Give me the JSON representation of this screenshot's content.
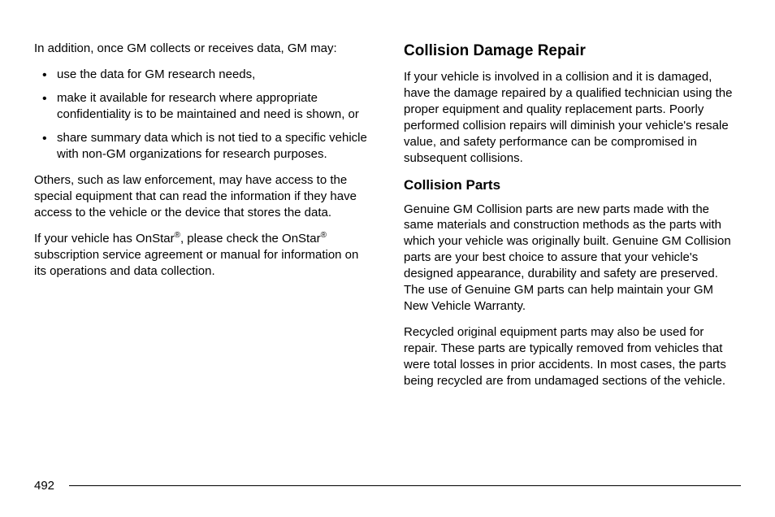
{
  "left": {
    "intro": "In addition, once GM collects or receives data, GM may:",
    "bullets": [
      "use the data for GM research needs,",
      "make it available for research where appropriate confidentiality is to be maintained and need is shown, or",
      "share summary data which is not tied to a specific vehicle with non-GM organizations for research purposes."
    ],
    "p2": "Others, such as law enforcement, may have access to the special equipment that can read the information if they have access to the vehicle or the device that stores the data.",
    "p3a": "If your vehicle has OnStar",
    "p3b": ", please check the OnStar",
    "p3c": " subscription service agreement or manual for information on its operations and data collection.",
    "reg": "®"
  },
  "right": {
    "h1": "Collision Damage Repair",
    "p1": "If your vehicle is involved in a collision and it is damaged, have the damage repaired by a qualified technician using the proper equipment and quality replacement parts. Poorly performed collision repairs will diminish your vehicle's resale value, and safety performance can be compromised in subsequent collisions.",
    "h2": "Collision Parts",
    "p2": "Genuine GM Collision parts are new parts made with the same materials and construction methods as the parts with which your vehicle was originally built. Genuine GM Collision parts are your best choice to assure that your vehicle's designed appearance, durability and safety are preserved. The use of Genuine GM parts can help maintain your GM New Vehicle Warranty.",
    "p3": "Recycled original equipment parts may also be used for repair. These parts are typically removed from vehicles that were total losses in prior accidents. In most cases, the parts being recycled are from undamaged sections of the vehicle."
  },
  "pageNumber": "492",
  "style": {
    "body_fontsize": 15,
    "h1_fontsize": 19,
    "h2_fontsize": 17,
    "line_height": 1.33,
    "text_color": "#000000",
    "bg_color": "#ffffff",
    "rule_color": "#000000"
  }
}
